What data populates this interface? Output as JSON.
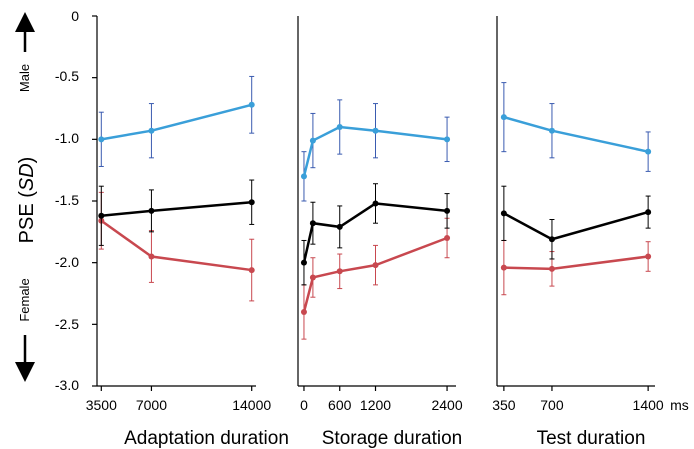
{
  "colors": {
    "male": "#3a9fd9",
    "female": "#c8484f",
    "mean": "#000000",
    "male_err": "#3a5bb0",
    "female_err": "#c8484f"
  },
  "y_axis": {
    "label_prefix": "PSE (",
    "label_italic": "SD",
    "label_suffix": ")",
    "ticks": [
      "0",
      "-0.5",
      "-1.0",
      "-1.5",
      "-2.0",
      "-2.5",
      "-3.0"
    ],
    "male_label": "Male",
    "female_label": "Female"
  },
  "chart_data": [
    {
      "type": "line",
      "xlabel": "Adaptation duration",
      "x": [
        3500,
        7000,
        14000
      ],
      "xticks": [
        3500,
        7000,
        14000
      ],
      "xtick_labels": [
        "3500",
        "7000",
        "14000"
      ],
      "xlim": [
        3200,
        14300
      ],
      "ylim": [
        -3.0,
        0
      ],
      "series": [
        {
          "role": "male",
          "values": [
            -1.0,
            -0.93,
            -0.72
          ],
          "err": [
            0.22,
            0.22,
            0.23
          ]
        },
        {
          "role": "mean",
          "values": [
            -1.62,
            -1.58,
            -1.51
          ],
          "err": [
            0.24,
            0.17,
            0.18
          ]
        },
        {
          "role": "female",
          "values": [
            -1.66,
            -1.95,
            -2.06
          ],
          "err": [
            0.23,
            0.21,
            0.25
          ]
        }
      ]
    },
    {
      "type": "line",
      "xlabel": "Storage duration",
      "x": [
        0,
        150,
        600,
        1200,
        2400
      ],
      "xticks": [
        0,
        600,
        1200,
        2400
      ],
      "xtick_labels": [
        "0",
        "600",
        "1200",
        "2400"
      ],
      "xlim": [
        -100,
        2550
      ],
      "ylim": [
        -3.0,
        0
      ],
      "series": [
        {
          "role": "male",
          "values": [
            -1.3,
            -1.01,
            -0.9,
            -0.93,
            -1.0
          ],
          "err": [
            0.2,
            0.22,
            0.22,
            0.22,
            0.18
          ]
        },
        {
          "role": "mean",
          "values": [
            -2.0,
            -1.68,
            -1.71,
            -1.52,
            -1.58
          ],
          "err": [
            0.18,
            0.17,
            0.17,
            0.16,
            0.14
          ]
        },
        {
          "role": "female",
          "values": [
            -2.4,
            -2.12,
            -2.07,
            -2.02,
            -1.8
          ],
          "err": [
            0.22,
            0.16,
            0.14,
            0.16,
            0.16
          ]
        }
      ]
    },
    {
      "type": "line",
      "xlabel": "Test duration",
      "x": [
        350,
        700,
        1400
      ],
      "xticks": [
        350,
        700,
        1400
      ],
      "xtick_labels": [
        "350",
        "700",
        "1400"
      ],
      "xunit": "ms",
      "xlim": [
        300,
        1450
      ],
      "ylim": [
        -3.0,
        0
      ],
      "series": [
        {
          "role": "male",
          "values": [
            -0.82,
            -0.93,
            -1.1
          ],
          "err": [
            0.28,
            0.22,
            0.16
          ]
        },
        {
          "role": "mean",
          "values": [
            -1.6,
            -1.81,
            -1.59
          ],
          "err": [
            0.22,
            0.16,
            0.13
          ]
        },
        {
          "role": "female",
          "values": [
            -2.04,
            -2.05,
            -1.95
          ],
          "err": [
            0.22,
            0.14,
            0.12
          ]
        }
      ]
    }
  ]
}
